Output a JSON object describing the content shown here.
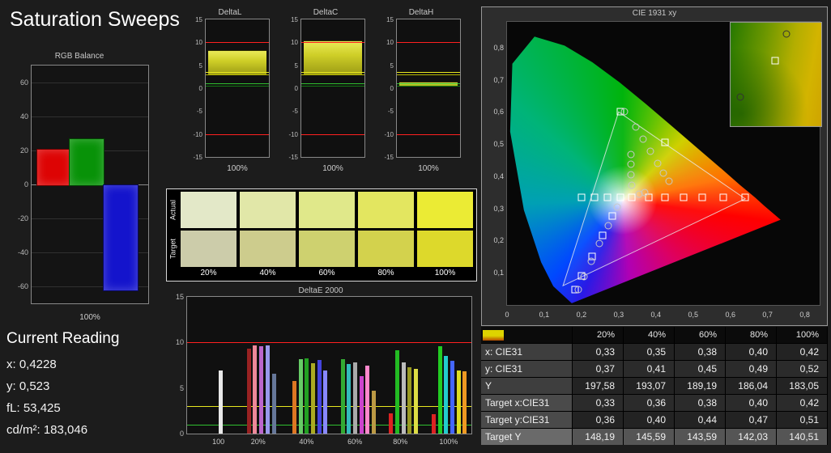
{
  "window": {
    "title": "Saturation Sweeps"
  },
  "rgb_balance": {
    "title": "RGB Balance",
    "x_label": "100%",
    "y_ticks": [
      60,
      40,
      20,
      0,
      -20,
      -40,
      -60
    ],
    "y_range": [
      -70,
      70
    ],
    "bars": [
      {
        "name": "red",
        "value": 21,
        "color": "#dd0404"
      },
      {
        "name": "green",
        "value": 27,
        "color": "#089208"
      },
      {
        "name": "blue",
        "value": -62,
        "color": "#1414cc"
      }
    ]
  },
  "current_reading": {
    "heading": "Current Reading",
    "lines": [
      "x: 0,4228",
      "y: 0,523",
      "fL: 53,425",
      "cd/m²: 183,046"
    ]
  },
  "delta_charts": {
    "y_ticks": [
      15,
      10,
      5,
      0,
      -5,
      -10,
      -15
    ],
    "y_range": [
      -15,
      15
    ],
    "x_label": "100%",
    "ref_lines": [
      {
        "value": 10,
        "color": "#ff2020"
      },
      {
        "value": -10,
        "color": "#ff2020"
      },
      {
        "value": 3.5,
        "color": "#e8e820"
      },
      {
        "value": 3,
        "color": "#b8b800"
      },
      {
        "value": 1,
        "color": "#30c030"
      },
      {
        "value": 0.5,
        "color": "#127812"
      }
    ],
    "charts": [
      {
        "title": "DeltaL",
        "bar_from": 3,
        "bar_to": 8.3
      },
      {
        "title": "DeltaC",
        "bar_from": 3,
        "bar_to": 10.4
      },
      {
        "title": "DeltaH",
        "bar_from": 0.5,
        "bar_to": 1.4
      }
    ]
  },
  "swatches": {
    "row_labels": [
      "Actual",
      "Target"
    ],
    "col_labels": [
      "20%",
      "40%",
      "60%",
      "80%",
      "100%"
    ],
    "actual_colors": [
      "#e3e8c8",
      "#e1e7a8",
      "#e0e88a",
      "#e3e660",
      "#ebeb34"
    ],
    "target_colors": [
      "#ccccaa",
      "#cdcc8d",
      "#ced16f",
      "#d3d24d",
      "#ddd92b"
    ]
  },
  "deltae": {
    "title": "DeltaE 2000",
    "y_ticks": [
      15,
      10,
      5,
      0
    ],
    "y_max": 15,
    "ref_lines": [
      {
        "value": 10,
        "color": "#ff2020"
      },
      {
        "value": 3,
        "color": "#e8e820"
      },
      {
        "value": 1,
        "color": "#30c030"
      }
    ],
    "x_ticks": [
      {
        "label": "100",
        "pos": 11
      },
      {
        "label": "20%",
        "pos": 25
      },
      {
        "label": "40%",
        "pos": 42
      },
      {
        "label": "60%",
        "pos": 59
      },
      {
        "label": "80%",
        "pos": 75
      },
      {
        "label": "100%",
        "pos": 92
      }
    ],
    "bars": [
      [
        11,
        6.9,
        "#e8e8e8"
      ],
      [
        21,
        9.3,
        "#992222"
      ],
      [
        23.2,
        9.7,
        "#ee8899"
      ],
      [
        25.4,
        9.6,
        "#bb66cc"
      ],
      [
        27.6,
        9.7,
        "#9999ee"
      ],
      [
        29.8,
        6.6,
        "#667799"
      ],
      [
        37,
        5.8,
        "#dd7722"
      ],
      [
        39.2,
        8.2,
        "#66cc66"
      ],
      [
        41.4,
        8.3,
        "#22a022"
      ],
      [
        43.6,
        7.7,
        "#aaaa22"
      ],
      [
        45.8,
        8.1,
        "#4444dd"
      ],
      [
        48,
        6.9,
        "#8888ff"
      ],
      [
        54,
        8.2,
        "#33aa33"
      ],
      [
        56.2,
        7.6,
        "#33bbbb"
      ],
      [
        58.4,
        7.8,
        "#aaaaaa"
      ],
      [
        60.6,
        6.3,
        "#cc44cc"
      ],
      [
        62.8,
        7.5,
        "#ff88cc"
      ],
      [
        65,
        4.7,
        "#bb9944"
      ],
      [
        71,
        2.2,
        "#dd2222"
      ],
      [
        73.2,
        9.1,
        "#22bb22"
      ],
      [
        75.4,
        7.8,
        "#bbbbbb"
      ],
      [
        77.6,
        7.3,
        "#999922"
      ],
      [
        79.8,
        7.1,
        "#dddd44"
      ],
      [
        86,
        2.1,
        "#dd2222"
      ],
      [
        88.2,
        9.6,
        "#22cc22"
      ],
      [
        90.4,
        8.5,
        "#22cccc"
      ],
      [
        92.6,
        8.0,
        "#4466ff"
      ],
      [
        94.8,
        6.9,
        "#dddd22"
      ],
      [
        97,
        6.8,
        "#ee9922"
      ]
    ]
  },
  "cie": {
    "title": "CIE 1931 xy",
    "x_max": 0.84,
    "y_max": 0.88,
    "x_ticks": [
      "0",
      "0,1",
      "0,2",
      "0,3",
      "0,4",
      "0,5",
      "0,6",
      "0,7",
      "0,8"
    ],
    "y_ticks": [
      "0,1",
      "0,2",
      "0,3",
      "0,4",
      "0,5",
      "0,6",
      "0,7",
      "0,8"
    ],
    "triangle": [
      [
        0.64,
        0.33
      ],
      [
        0.3,
        0.6
      ],
      [
        0.15,
        0.06
      ]
    ],
    "squares": [
      [
        0.2,
        0.335
      ],
      [
        0.235,
        0.335
      ],
      [
        0.27,
        0.335
      ],
      [
        0.305,
        0.335
      ],
      [
        0.335,
        0.335
      ],
      [
        0.38,
        0.335
      ],
      [
        0.425,
        0.335
      ],
      [
        0.475,
        0.335
      ],
      [
        0.525,
        0.335
      ],
      [
        0.58,
        0.335
      ],
      [
        0.64,
        0.335
      ],
      [
        0.283,
        0.276
      ],
      [
        0.256,
        0.215
      ],
      [
        0.228,
        0.152
      ],
      [
        0.2,
        0.09
      ],
      [
        0.182,
        0.048
      ],
      [
        0.305,
        0.6
      ],
      [
        0.425,
        0.505
      ]
    ],
    "circles": [
      [
        0.315,
        0.601
      ],
      [
        0.345,
        0.552
      ],
      [
        0.365,
        0.515
      ],
      [
        0.385,
        0.478
      ],
      [
        0.405,
        0.44
      ],
      [
        0.42,
        0.41
      ],
      [
        0.435,
        0.385
      ],
      [
        0.332,
        0.468
      ],
      [
        0.334,
        0.437
      ],
      [
        0.333,
        0.404
      ],
      [
        0.336,
        0.372
      ],
      [
        0.296,
        0.303
      ],
      [
        0.272,
        0.247
      ],
      [
        0.249,
        0.192
      ],
      [
        0.227,
        0.137
      ],
      [
        0.207,
        0.088
      ],
      [
        0.192,
        0.048
      ],
      [
        0.355,
        0.345
      ],
      [
        0.37,
        0.35
      ]
    ],
    "inset": {
      "square": [
        49,
        37
      ],
      "circles": [
        [
          62,
          11
        ],
        [
          11,
          72
        ]
      ]
    }
  },
  "table": {
    "headers": [
      "",
      "20%",
      "40%",
      "60%",
      "80%",
      "100%"
    ],
    "rows": [
      {
        "label": "x: CIE31",
        "values": [
          "0,33",
          "0,35",
          "0,38",
          "0,40",
          "0,42"
        ]
      },
      {
        "label": "y: CIE31",
        "values": [
          "0,37",
          "0,41",
          "0,45",
          "0,49",
          "0,52"
        ]
      },
      {
        "label": "Y",
        "values": [
          "197,58",
          "193,07",
          "189,19",
          "186,04",
          "183,05"
        ]
      },
      {
        "label": "Target x:CIE31",
        "values": [
          "0,33",
          "0,36",
          "0,38",
          "0,40",
          "0,42"
        ]
      },
      {
        "label": "Target y:CIE31",
        "values": [
          "0,36",
          "0,40",
          "0,44",
          "0,47",
          "0,51"
        ]
      },
      {
        "label": "Target Y",
        "values": [
          "148,19",
          "145,59",
          "143,59",
          "142,03",
          "140,51"
        ]
      }
    ]
  }
}
